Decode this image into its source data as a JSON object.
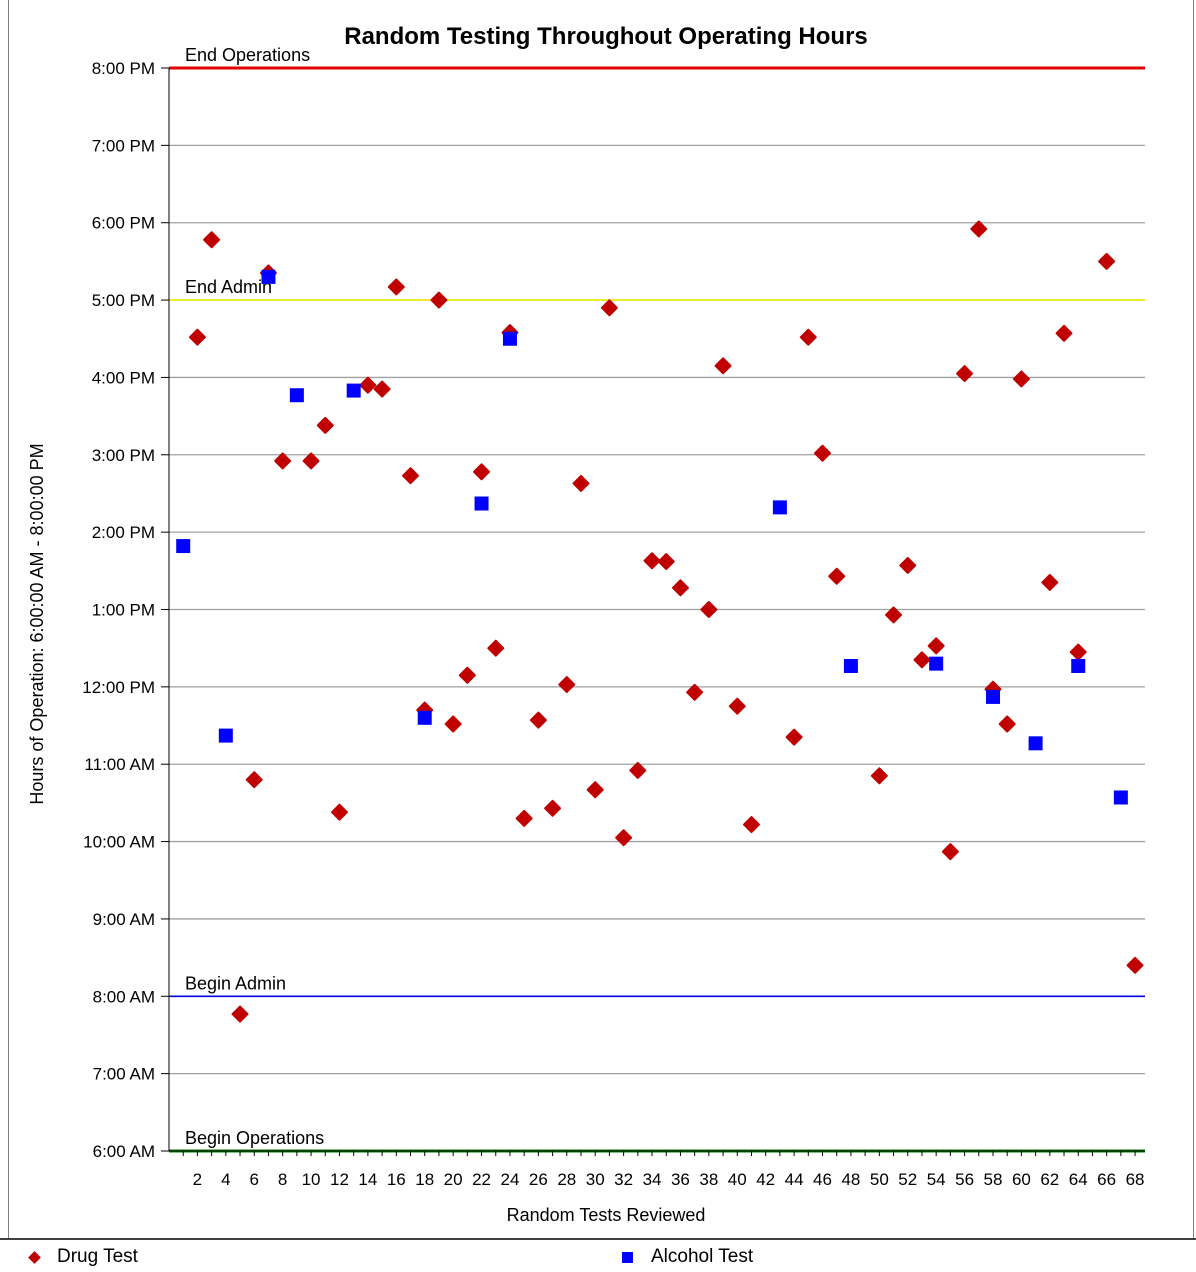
{
  "chart_data": {
    "type": "scatter",
    "title": "Random Testing Throughout Operating Hours",
    "xlabel": "Random Tests Reviewed",
    "ylabel": "Hours of Operation: 6:00:00 AM - 8:00:00 PM",
    "xlim": [
      0,
      68.7
    ],
    "ylim": [
      6,
      20
    ],
    "x_ticks": [
      2,
      4,
      6,
      8,
      10,
      12,
      14,
      16,
      18,
      20,
      22,
      24,
      26,
      28,
      30,
      32,
      34,
      36,
      38,
      40,
      42,
      44,
      46,
      48,
      50,
      52,
      54,
      56,
      58,
      60,
      62,
      64,
      66,
      68
    ],
    "y_ticks": [
      {
        "value": 6,
        "label": "6:00 AM"
      },
      {
        "value": 7,
        "label": "7:00 AM"
      },
      {
        "value": 8,
        "label": "8:00 AM"
      },
      {
        "value": 9,
        "label": "9:00 AM"
      },
      {
        "value": 10,
        "label": "10:00 AM"
      },
      {
        "value": 11,
        "label": "11:00 AM"
      },
      {
        "value": 12,
        "label": "12:00 PM"
      },
      {
        "value": 13,
        "label": "1:00 PM"
      },
      {
        "value": 14,
        "label": "2:00 PM"
      },
      {
        "value": 15,
        "label": "3:00 PM"
      },
      {
        "value": 16,
        "label": "4:00 PM"
      },
      {
        "value": 17,
        "label": "5:00 PM"
      },
      {
        "value": 18,
        "label": "6:00 PM"
      },
      {
        "value": 19,
        "label": "7:00 PM"
      },
      {
        "value": 20,
        "label": "8:00 PM"
      }
    ],
    "grid": true,
    "legend_position": "bottom",
    "reference_lines": [
      {
        "label": "End Operations",
        "value": 20,
        "color": "#e00000"
      },
      {
        "label": "End Admin",
        "value": 17,
        "color": "#f0f000"
      },
      {
        "label": "Begin Admin",
        "value": 8,
        "color": "#0000e0"
      },
      {
        "label": "Begin Operations",
        "value": 6,
        "color": "#008000"
      }
    ],
    "series": [
      {
        "name": "Drug Test",
        "marker": "diamond",
        "color": "#c00000",
        "points": [
          [
            2,
            16.52
          ],
          [
            3,
            17.78
          ],
          [
            5,
            7.77
          ],
          [
            6,
            10.8
          ],
          [
            7,
            17.35
          ],
          [
            8,
            14.92
          ],
          [
            10,
            14.92
          ],
          [
            11,
            15.38
          ],
          [
            12,
            10.38
          ],
          [
            14,
            15.9
          ],
          [
            15,
            15.85
          ],
          [
            16,
            17.17
          ],
          [
            17,
            14.73
          ],
          [
            18,
            11.7
          ],
          [
            19,
            17.0
          ],
          [
            20,
            11.52
          ],
          [
            21,
            12.15
          ],
          [
            22,
            14.78
          ],
          [
            23,
            12.5
          ],
          [
            24,
            16.58
          ],
          [
            25,
            10.3
          ],
          [
            26,
            11.57
          ],
          [
            27,
            10.43
          ],
          [
            28,
            12.03
          ],
          [
            29,
            14.63
          ],
          [
            30,
            10.67
          ],
          [
            31,
            16.9
          ],
          [
            32,
            10.05
          ],
          [
            33,
            10.92
          ],
          [
            34,
            13.63
          ],
          [
            35,
            13.62
          ],
          [
            36,
            13.28
          ],
          [
            37,
            11.93
          ],
          [
            38,
            13.0
          ],
          [
            39,
            16.15
          ],
          [
            40,
            11.75
          ],
          [
            41,
            10.22
          ],
          [
            44,
            11.35
          ],
          [
            45,
            16.52
          ],
          [
            46,
            15.02
          ],
          [
            47,
            13.43
          ],
          [
            50,
            10.85
          ],
          [
            51,
            12.93
          ],
          [
            52,
            13.57
          ],
          [
            53,
            12.35
          ],
          [
            54,
            12.53
          ],
          [
            55,
            9.87
          ],
          [
            56,
            16.05
          ],
          [
            57,
            17.92
          ],
          [
            58,
            11.97
          ],
          [
            59,
            11.52
          ],
          [
            60,
            15.98
          ],
          [
            62,
            13.35
          ],
          [
            63,
            16.57
          ],
          [
            64,
            12.45
          ],
          [
            66,
            17.5
          ],
          [
            68,
            8.4
          ]
        ]
      },
      {
        "name": "Alcohol Test",
        "marker": "square",
        "color": "#0000ff",
        "points": [
          [
            1,
            13.82
          ],
          [
            4,
            11.37
          ],
          [
            7,
            17.3
          ],
          [
            9,
            15.77
          ],
          [
            13,
            15.83
          ],
          [
            18,
            11.6
          ],
          [
            22,
            14.37
          ],
          [
            24,
            16.5
          ],
          [
            43,
            14.32
          ],
          [
            48,
            12.27
          ],
          [
            54,
            12.3
          ],
          [
            58,
            11.87
          ],
          [
            61,
            11.27
          ],
          [
            64,
            12.27
          ],
          [
            67,
            10.57
          ]
        ]
      }
    ]
  }
}
